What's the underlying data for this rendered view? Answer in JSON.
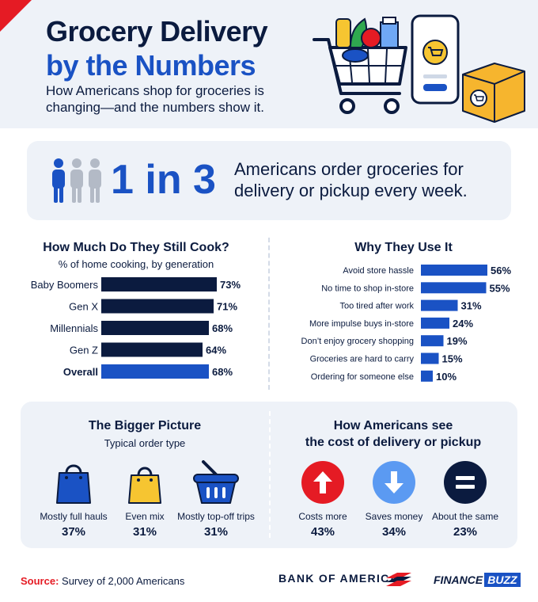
{
  "header": {
    "title_line1": "Grocery Delivery",
    "title_line2": "by the Numbers",
    "subtitle": "How Americans shop for groceries is changing—and the numbers show it."
  },
  "stat": {
    "number": "1 in 3",
    "text": "Americans order groceries for delivery or pickup every week."
  },
  "colors": {
    "navy": "#0b1b3f",
    "blue": "#1a52c4",
    "red": "#e51b24",
    "yellow": "#f6c531",
    "panel": "#eef2f8"
  },
  "chart_data": [
    {
      "type": "bar",
      "orientation": "horizontal",
      "title": "How Much Do They Still Cook?",
      "subtitle": "% of home cooking, by generation",
      "categories": [
        "Baby Boomers",
        "Gen X",
        "Millennials",
        "Gen Z",
        "Overall"
      ],
      "values": [
        73,
        71,
        68,
        64,
        68
      ],
      "value_labels": [
        "73%",
        "71%",
        "68%",
        "64%",
        "68%"
      ],
      "highlight": "Overall"
    },
    {
      "type": "bar",
      "orientation": "horizontal",
      "title": "Why They Use It",
      "categories": [
        "Avoid store hassle",
        "No time to shop in-store",
        "Too tired after work",
        "More impulse buys in-store",
        "Don’t enjoy grocery shopping",
        "Groceries are hard to carry",
        "Ordering for someone else"
      ],
      "values": [
        56,
        55,
        31,
        24,
        19,
        15,
        10
      ],
      "value_labels": [
        "56%",
        "55%",
        "31%",
        "24%",
        "19%",
        "15%",
        "10%"
      ]
    }
  ],
  "bigger_picture": {
    "title": "The Bigger Picture",
    "subtitle": "Typical order type",
    "items": [
      {
        "label": "Mostly full hauls",
        "value": "37%",
        "icon": "blue-shopping-bag-icon"
      },
      {
        "label": "Even mix",
        "value": "31%",
        "icon": "yellow-shopping-bag-icon"
      },
      {
        "label": "Mostly top-off trips",
        "value": "31%",
        "icon": "shopping-basket-icon"
      }
    ]
  },
  "cost_view": {
    "title_line1": "How Americans see",
    "title_line2": "the cost of delivery or pickup",
    "items": [
      {
        "label": "Costs more",
        "value": "43%",
        "icon": "arrow-up-icon"
      },
      {
        "label": "Saves money",
        "value": "34%",
        "icon": "arrow-down-icon"
      },
      {
        "label": "About the same",
        "value": "23%",
        "icon": "equals-icon"
      }
    ]
  },
  "footer": {
    "source_label": "Source:",
    "source_text": " Survey of 2,000 Americans",
    "brand1": "BANK OF AMERICA",
    "brand2_part1": "FINANCE",
    "brand2_part2": "BUZZ"
  }
}
